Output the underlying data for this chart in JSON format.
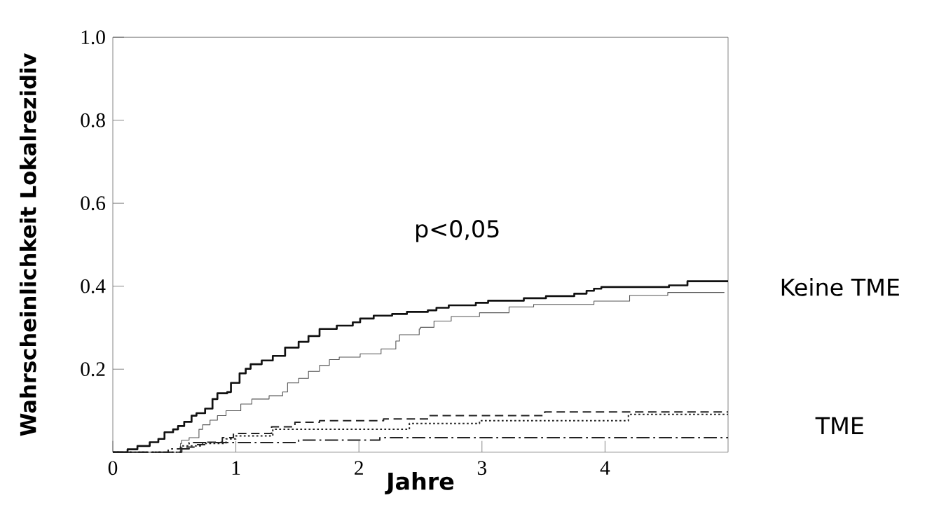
{
  "chart_data": {
    "type": "step",
    "xlabel": "Jahre",
    "ylabel": "Wahrscheinlichkeit Lokalrezidiv",
    "xlim": [
      0,
      5
    ],
    "ylim": [
      0,
      1
    ],
    "xticks": [
      0,
      1,
      2,
      3,
      4
    ],
    "yticks": [
      0.2,
      0.4,
      0.6,
      0.8,
      {
        "value": 1,
        "label": "1.0"
      }
    ],
    "marker": "none",
    "annotations": [
      "p<0,05",
      "Keine TME",
      "TME"
    ],
    "series": [
      {
        "color": "#111111",
        "line_style": "solid",
        "x": [
          0,
          0.12,
          0.2,
          0.3,
          0.37,
          0.42,
          0.49,
          0.53,
          0.58,
          0.64,
          0.68,
          0.75,
          0.81,
          0.85,
          0.93,
          0.96,
          1.03,
          1.08,
          1.12,
          1.21,
          1.3,
          1.4,
          1.51,
          1.59,
          1.68,
          1.82,
          1.95,
          2.01,
          2.12,
          2.27,
          2.39,
          2.56,
          2.63,
          2.73,
          2.95,
          3.05,
          3.34,
          3.52,
          3.75,
          3.85,
          3.91,
          3.97,
          4.52,
          4.67,
          5.0
        ],
        "values": [
          0,
          0.007,
          0.015,
          0.024,
          0.032,
          0.048,
          0.055,
          0.063,
          0.073,
          0.088,
          0.094,
          0.105,
          0.128,
          0.142,
          0.145,
          0.167,
          0.19,
          0.201,
          0.212,
          0.221,
          0.232,
          0.252,
          0.266,
          0.28,
          0.297,
          0.305,
          0.313,
          0.322,
          0.329,
          0.333,
          0.338,
          0.342,
          0.348,
          0.354,
          0.36,
          0.365,
          0.371,
          0.376,
          0.382,
          0.389,
          0.394,
          0.398,
          0.402,
          0.412,
          0.412
        ]
      },
      {
        "color": "#555555",
        "line_style": "solid",
        "x": [
          0,
          0.55,
          0.56,
          0.62,
          0.7,
          0.73,
          0.79,
          0.85,
          0.92,
          1.04,
          1.13,
          1.27,
          1.38,
          1.42,
          1.51,
          1.59,
          1.68,
          1.76,
          1.84,
          2.01,
          2.18,
          2.3,
          2.33,
          2.49,
          2.5,
          2.61,
          2.75,
          2.98,
          3.22,
          3.42,
          3.91,
          4.2,
          4.51,
          4.97
        ],
        "values": [
          0,
          0.021,
          0.029,
          0.035,
          0.055,
          0.066,
          0.077,
          0.088,
          0.1,
          0.116,
          0.128,
          0.136,
          0.145,
          0.167,
          0.178,
          0.195,
          0.209,
          0.223,
          0.229,
          0.237,
          0.249,
          0.268,
          0.283,
          0.297,
          0.301,
          0.316,
          0.327,
          0.336,
          0.35,
          0.356,
          0.364,
          0.378,
          0.385,
          0.385
        ]
      },
      {
        "color": "#222222",
        "line_style": "dashed",
        "x": [
          0,
          0.56,
          0.66,
          0.77,
          0.89,
          0.98,
          1.29,
          1.48,
          1.68,
          2.2,
          2.57,
          3.51,
          5.0
        ],
        "values": [
          0,
          0.012,
          0.018,
          0.024,
          0.035,
          0.045,
          0.061,
          0.072,
          0.076,
          0.08,
          0.088,
          0.097,
          0.097
        ]
      },
      {
        "color": "#222222",
        "line_style": "dotted",
        "x": [
          0,
          0.55,
          0.73,
          0.92,
          1.0,
          1.3,
          2.41,
          2.98,
          4.19,
          5.0
        ],
        "values": [
          0,
          0.015,
          0.021,
          0.032,
          0.039,
          0.055,
          0.069,
          0.076,
          0.091,
          0.091
        ]
      },
      {
        "color": "#222222",
        "line_style": "dashdot",
        "x": [
          0,
          0.45,
          0.62,
          1.51,
          2.17,
          5.0
        ],
        "values": [
          0,
          0.008,
          0.023,
          0.029,
          0.035,
          0.035
        ]
      }
    ]
  }
}
